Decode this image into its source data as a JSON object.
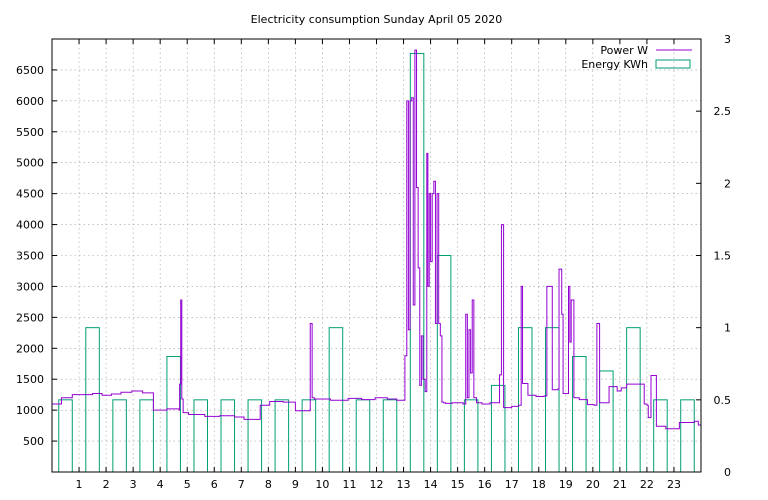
{
  "chart_data": {
    "type": "bar",
    "title": "Electricity consumption Sunday April 05 2020",
    "xlim": [
      0,
      24
    ],
    "ylim_left": [
      0,
      7000
    ],
    "ylim_right": [
      0,
      3
    ],
    "grid": true,
    "legend_position": "top-right",
    "x_ticks": [
      1,
      2,
      3,
      4,
      5,
      6,
      7,
      8,
      9,
      10,
      11,
      12,
      13,
      14,
      15,
      16,
      17,
      18,
      19,
      20,
      21,
      22,
      23
    ],
    "y_left_ticks": [
      500,
      1000,
      1500,
      2000,
      2500,
      3000,
      3500,
      4000,
      4500,
      5000,
      5500,
      6000,
      6500
    ],
    "y_right_ticks": [
      0,
      0.5,
      1,
      1.5,
      2,
      2.5,
      3
    ],
    "y_right_tick_labels": [
      "0",
      "0.5",
      "1",
      "1.5",
      "2",
      "2.5",
      "3"
    ],
    "series": [
      {
        "name": "Energy KWh",
        "axis": "right",
        "style": "boxes",
        "color": "#009e73",
        "x": [
          0,
          1,
          2,
          3,
          4,
          5,
          6,
          7,
          8,
          9,
          10,
          11,
          12,
          13,
          14,
          15,
          16,
          17,
          18,
          19,
          20,
          21,
          22,
          23
        ],
        "values": [
          0.5,
          1.0,
          0.5,
          0.5,
          0.8,
          0.5,
          0.5,
          0.5,
          0.5,
          0.5,
          1.0,
          0.5,
          0.5,
          2.9,
          1.5,
          0.5,
          0.6,
          1.0,
          1.0,
          0.8,
          0.7,
          1.0,
          0.5,
          0.5
        ]
      },
      {
        "name": "Power W",
        "axis": "left",
        "style": "steps",
        "color": "#9400d3",
        "x": [
          0,
          0.35,
          0.75,
          1.5,
          1.85,
          2.2,
          2.55,
          2.95,
          3.35,
          3.75,
          4.25,
          4.7,
          4.72,
          4.76,
          4.8,
          4.85,
          5.05,
          5.65,
          6.2,
          6.75,
          7.1,
          7.7,
          8.05,
          8.55,
          9.0,
          9.55,
          9.62,
          9.7,
          10.3,
          10.95,
          11.45,
          11.95,
          12.4,
          12.75,
          13.05,
          13.12,
          13.18,
          13.24,
          13.3,
          13.36,
          13.42,
          13.48,
          13.54,
          13.6,
          13.66,
          13.72,
          13.8,
          13.86,
          13.9,
          13.95,
          14.0,
          14.06,
          14.12,
          14.18,
          14.24,
          14.3,
          14.36,
          14.42,
          14.48,
          14.55,
          14.8,
          15.2,
          15.3,
          15.36,
          15.42,
          15.48,
          15.54,
          15.6,
          15.7,
          15.9,
          16.2,
          16.55,
          16.62,
          16.7,
          17.0,
          17.25,
          17.35,
          17.4,
          17.6,
          17.9,
          18.2,
          18.3,
          18.5,
          18.7,
          18.75,
          18.85,
          18.9,
          19.1,
          19.15,
          19.2,
          19.3,
          19.5,
          19.8,
          20.05,
          20.15,
          20.25,
          20.6,
          20.9,
          21.05,
          21.25,
          21.9,
          22.0,
          22.05,
          22.15,
          22.35,
          22.7,
          23.2,
          23.75,
          23.9
        ],
        "values": [
          1100,
          1200,
          1250,
          1270,
          1240,
          1260,
          1290,
          1310,
          1280,
          1000,
          1020,
          1000,
          1420,
          2780,
          1180,
          960,
          930,
          900,
          910,
          890,
          850,
          1080,
          1140,
          1130,
          990,
          2400,
          1200,
          1180,
          1160,
          1190,
          1170,
          1200,
          1180,
          1160,
          1880,
          6000,
          2300,
          6000,
          6050,
          2700,
          6820,
          4600,
          3300,
          1400,
          2200,
          1500,
          1300,
          5150,
          3000,
          4500,
          3400,
          4500,
          4700,
          2400,
          4500,
          2400,
          2200,
          1130,
          1120,
          1110,
          1120,
          1100,
          2550,
          1200,
          2300,
          1600,
          2780,
          1200,
          1120,
          1100,
          1120,
          1570,
          4000,
          1040,
          1060,
          1080,
          3000,
          1430,
          1240,
          1220,
          1230,
          3000,
          1330,
          1340,
          3280,
          2550,
          1270,
          3000,
          2100,
          2780,
          1200,
          1170,
          1090,
          1080,
          2400,
          1120,
          1380,
          1310,
          1360,
          1420,
          1100,
          1080,
          880,
          1560,
          740,
          700,
          800,
          820,
          760
        ]
      }
    ]
  }
}
